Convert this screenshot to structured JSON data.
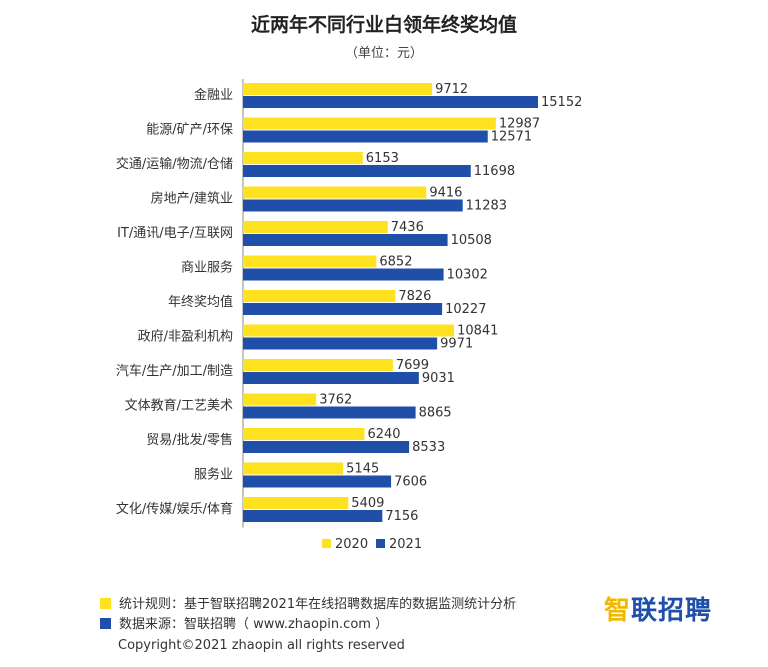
{
  "chart_data": {
    "type": "bar",
    "orientation": "horizontal",
    "title": "近两年不同行业白领年终奖均值",
    "unit_label": "（单位：元）",
    "categories": [
      "金融业",
      "能源/矿产/环保",
      "交通/运输/物流/仓储",
      "房地产/建筑业",
      "IT/通讯/电子/互联网",
      "商业服务",
      "年终奖均值",
      "政府/非盈利机构",
      "汽车/生产/加工/制造",
      "文体教育/工艺美术",
      "贸易/批发/零售",
      "服务业",
      "文化/传媒/娱乐/体育"
    ],
    "series": [
      {
        "name": "2020",
        "color": "#FFE21F",
        "values": [
          9712,
          12987,
          6153,
          9416,
          7436,
          6852,
          7826,
          10841,
          7699,
          3762,
          6240,
          5145,
          5409
        ]
      },
      {
        "name": "2021",
        "color": "#1F4FA8",
        "values": [
          15152,
          12571,
          11698,
          11283,
          10508,
          10302,
          10227,
          9971,
          9031,
          8865,
          8533,
          7606,
          7156
        ]
      }
    ],
    "xlim": [
      0,
      16000
    ],
    "grid": false,
    "legend_position": "bottom"
  },
  "footer": {
    "rule": "统计规则：基于智联招聘2021年在线招聘数据库的数据监测统计分析",
    "source": "数据来源：智联招聘（ www.zhaopin.com ）",
    "rule_color": "#FFE21F",
    "source_color": "#1F4FA8"
  },
  "logo": {
    "accent": "智",
    "rest": "联招聘",
    "color": "#1F4FA8",
    "accent_color": "#F2B800"
  },
  "copyright": "Copyright©2021 zhaopin all rights reserved"
}
